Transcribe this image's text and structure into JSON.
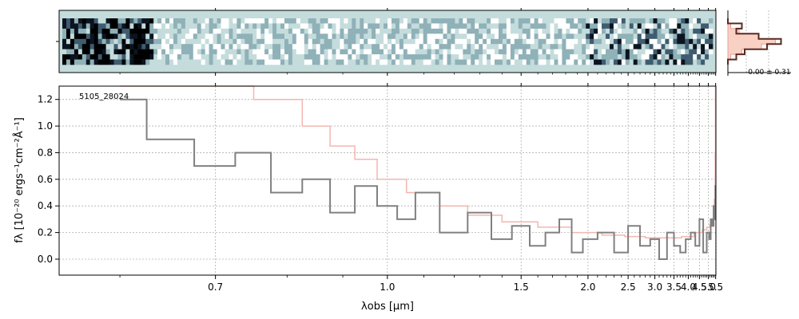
{
  "chart_data": [
    {
      "type": "heatmap",
      "panel": "2D spectrum",
      "colormap": [
        "#ffffff",
        "#c5dcdc",
        "#8fb1b8",
        "#3f5c70",
        "#0b1420",
        "#000000"
      ],
      "background_color": "#c5dcdc",
      "xlim": [
        0.55,
        5.52
      ],
      "x_scale": "reciprocal"
    },
    {
      "type": "line",
      "panel": "spatial profile",
      "annotation": "-0.00 ± 0.31",
      "series": [
        {
          "name": "",
          "color": "#e8a090",
          "role": "model",
          "values": [
            0.0,
            0.05,
            0.2,
            0.55,
            0.85,
            0.6,
            0.25,
            0.05,
            0.0
          ]
        },
        {
          "name": "",
          "color": "#5a2a22",
          "role": "data",
          "values": [
            0.0,
            0.25,
            0.15,
            0.55,
            0.95,
            0.7,
            0.3,
            0.15,
            0.0
          ]
        }
      ]
    },
    {
      "type": "line",
      "panel": "1D spectrum",
      "title": "",
      "label": "5105_28024",
      "xlabel": "λobs [μm]",
      "ylabel": "fλ [10⁻²⁰ ergs⁻¹cm⁻²Å⁻¹]",
      "xlim": [
        0.55,
        5.52
      ],
      "ylim": [
        -0.12,
        1.3
      ],
      "x_scale": "reciprocal",
      "grid": true,
      "x_ticks": [
        0.7,
        1.0,
        1.5,
        2.0,
        2.5,
        3.0,
        3.5,
        4.0,
        4.5,
        5.0,
        5.5
      ],
      "x_tick_labels": [
        "0.7",
        "1.0",
        "1.5",
        "2.0",
        "2.5",
        "3.0",
        "3.5",
        "4.0",
        "4.5",
        "5.0",
        "5.5"
      ],
      "y_ticks": [
        0.0,
        0.2,
        0.4,
        0.6,
        0.8,
        1.0,
        1.2
      ],
      "y_tick_labels": [
        "0.0",
        "0.2",
        "0.4",
        "0.6",
        "0.8",
        "1.0",
        "1.2"
      ],
      "series": [
        {
          "name": "",
          "color": "#808080",
          "style": "step",
          "x": [
            0.6,
            0.65,
            0.7,
            0.75,
            0.8,
            0.85,
            0.9,
            0.95,
            1.0,
            1.05,
            1.1,
            1.2,
            1.3,
            1.4,
            1.5,
            1.6,
            1.7,
            1.8,
            1.9,
            2.0,
            2.2,
            2.4,
            2.6,
            2.8,
            3.0,
            3.2,
            3.4,
            3.6,
            3.8,
            4.0,
            4.2,
            4.4,
            4.6,
            4.8,
            5.0,
            5.1,
            5.2,
            5.3,
            5.4,
            5.45,
            5.5
          ],
          "y": [
            1.2,
            0.9,
            0.7,
            0.8,
            0.5,
            0.6,
            0.35,
            0.55,
            0.4,
            0.3,
            0.5,
            0.2,
            0.35,
            0.15,
            0.25,
            0.1,
            0.2,
            0.3,
            0.05,
            0.15,
            0.2,
            0.05,
            0.25,
            0.1,
            0.15,
            0.0,
            0.2,
            0.1,
            0.05,
            0.15,
            0.2,
            0.1,
            0.3,
            0.05,
            0.2,
            0.15,
            0.3,
            0.25,
            0.4,
            0.3,
            0.55
          ]
        },
        {
          "name": "",
          "color": "#f4b6b0",
          "style": "step",
          "role": "uncertainty",
          "x": [
            0.6,
            0.7,
            0.8,
            0.85,
            0.9,
            0.95,
            1.0,
            1.1,
            1.2,
            1.3,
            1.5,
            1.7,
            2.0,
            2.3,
            2.6,
            3.0,
            3.5,
            4.0,
            4.5,
            4.8,
            5.0,
            5.2,
            5.35,
            5.45,
            5.48,
            5.5
          ],
          "y": [
            1.3,
            1.3,
            1.2,
            1.0,
            0.85,
            0.75,
            0.6,
            0.5,
            0.4,
            0.33,
            0.28,
            0.24,
            0.2,
            0.18,
            0.17,
            0.16,
            0.16,
            0.17,
            0.2,
            0.22,
            0.24,
            0.26,
            0.3,
            0.45,
            0.8,
            1.3
          ]
        }
      ]
    }
  ]
}
